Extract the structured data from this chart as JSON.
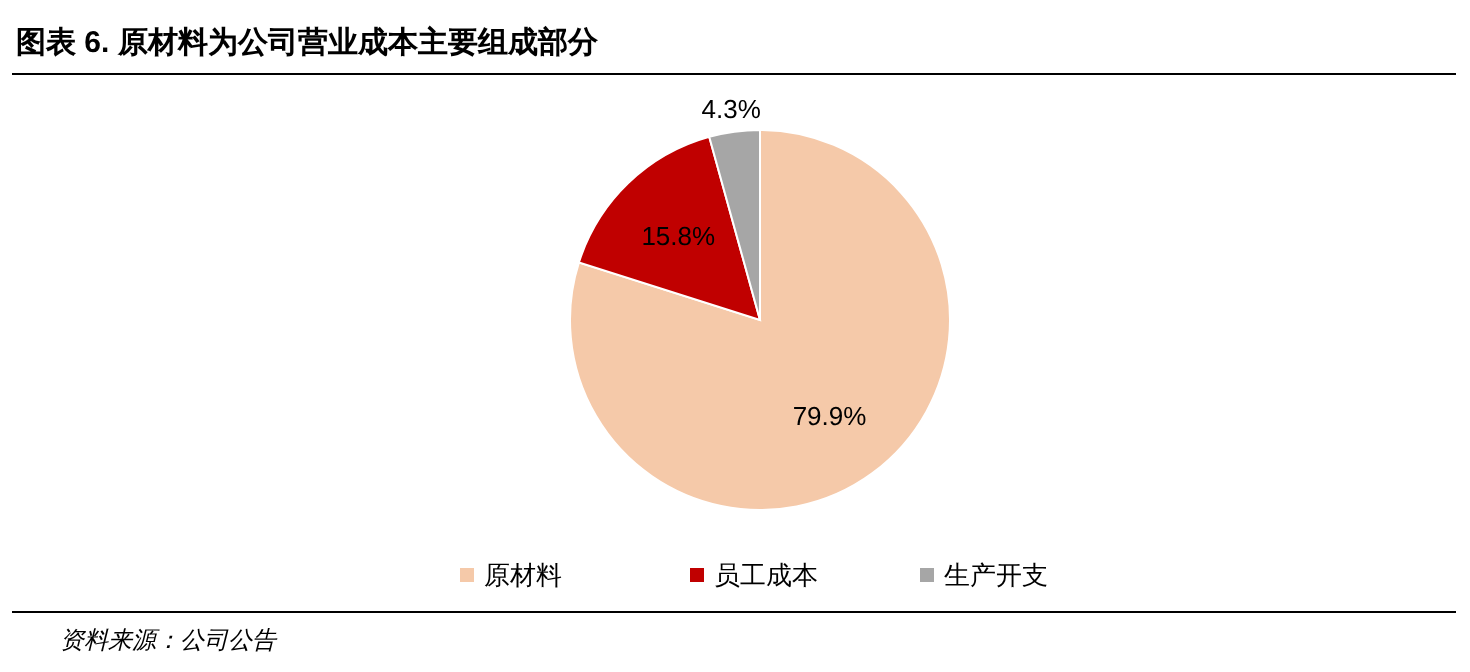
{
  "chart_data": {
    "type": "pie",
    "title": "图表 6. 原材料为公司营业成本主要组成部分",
    "categories": [
      "原材料",
      "员工成本",
      "生产开支"
    ],
    "values": [
      79.9,
      15.8,
      4.3
    ],
    "colors": [
      "#f5c9a9",
      "#c00000",
      "#a6a6a6"
    ],
    "value_labels": [
      "79.9%",
      "15.8%",
      "4.3%"
    ],
    "legend": "bottom",
    "annotations": [
      "资料来源：公司公告"
    ]
  }
}
